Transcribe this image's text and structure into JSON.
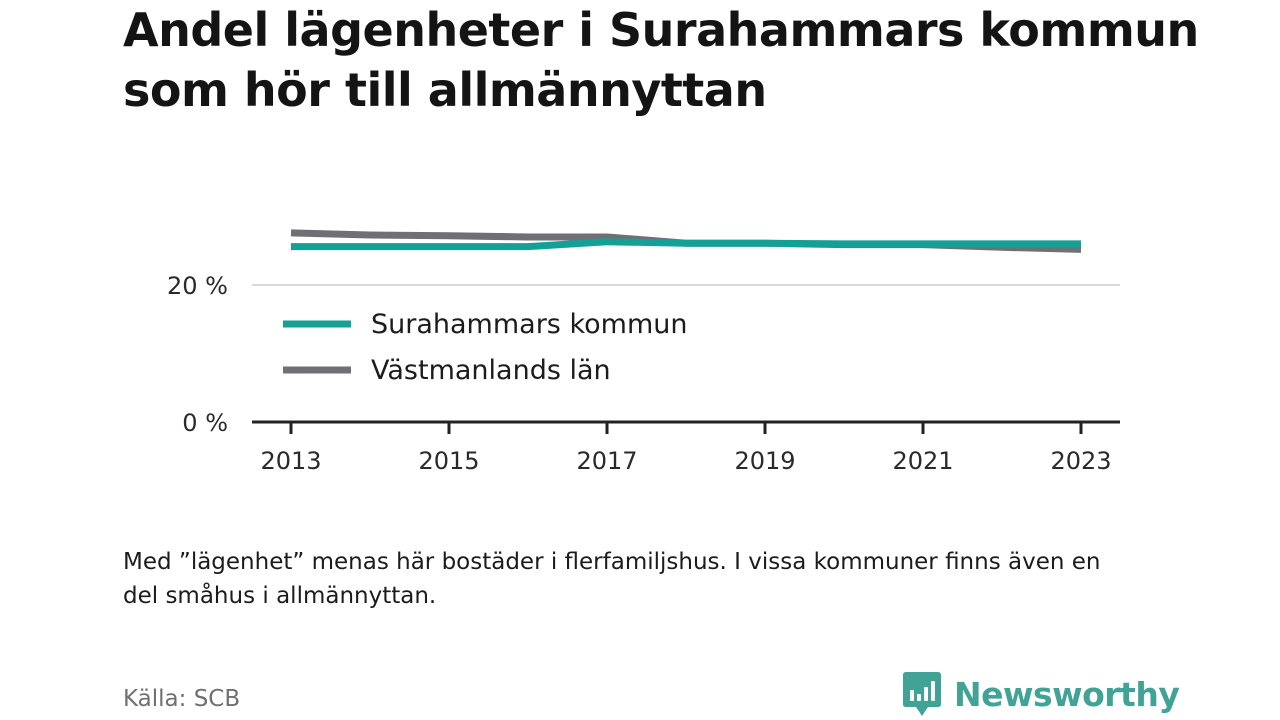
{
  "title": "Andel lägenheter i Surahammars kommun som hör till allmännyttan",
  "note": "Med ”lägenhet” menas här bostäder i flerfamiljshus. I vissa kommuner finns även en del småhus i allmännyttan.",
  "source": "Källa: SCB",
  "brand": "Newsworthy",
  "colors": {
    "surahammar": "#13a196",
    "vastmanland": "#6f6f76",
    "grid": "#dadada",
    "axis": "#222222",
    "brand": "#41a396"
  },
  "chart_data": {
    "type": "line",
    "title": "Andel lägenheter i Surahammars kommun som hör till allmännyttan",
    "xlabel": "",
    "ylabel": "",
    "x": [
      2013,
      2014,
      2015,
      2016,
      2017,
      2018,
      2019,
      2020,
      2021,
      2022,
      2023
    ],
    "x_ticks": [
      "2013",
      "2015",
      "2017",
      "2019",
      "2021",
      "2023"
    ],
    "y_ticks": [
      "0 %",
      "20 %"
    ],
    "ylim": [
      0,
      30
    ],
    "grid": true,
    "legend_position": "inside-left",
    "series": [
      {
        "name": "Surahammars kommun",
        "color": "#13a196",
        "values": [
          25.6,
          25.6,
          25.6,
          25.6,
          26.3,
          26.1,
          26.1,
          26.0,
          26.0,
          26.0,
          26.0
        ]
      },
      {
        "name": "Västmanlands län",
        "color": "#6f6f76",
        "values": [
          27.6,
          27.3,
          27.2,
          27.0,
          27.0,
          26.1,
          26.1,
          25.9,
          25.9,
          25.5,
          25.2
        ]
      }
    ]
  }
}
